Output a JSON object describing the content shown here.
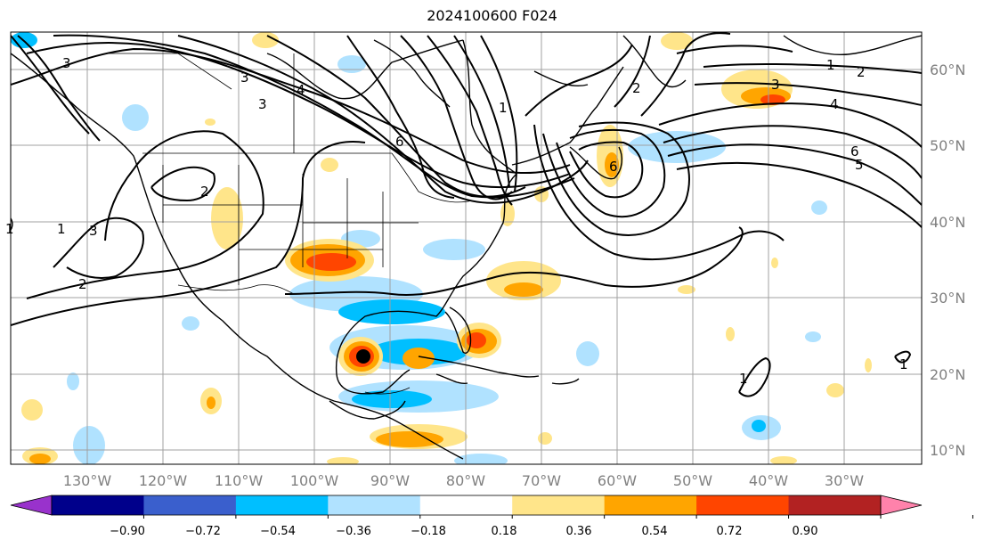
{
  "title": "2024100600 F024",
  "longitude_labels": [
    "130°W",
    "120°W",
    "110°W",
    "100°W",
    "90°W",
    "80°W",
    "70°W",
    "60°W",
    "50°W",
    "40°W",
    "30°W"
  ],
  "latitude_labels": [
    "60°N",
    "50°N",
    "40°N",
    "30°N",
    "20°N",
    "10°N"
  ],
  "colorbar": {
    "labels": [
      "−0.90",
      "−0.72",
      "−0.54",
      "−0.36",
      "−0.18",
      "0.18",
      "0.36",
      "0.54",
      "0.72",
      "0.90"
    ],
    "colors": [
      "#9932cc",
      "#00008b",
      "#3a5fcd",
      "#00bfff",
      "#b0e2ff",
      "#ffffff",
      "#ffe58a",
      "#ffa500",
      "#ff4500",
      "#b22222",
      "#ff82ab"
    ]
  },
  "contour_labels": [
    "1",
    "2",
    "3",
    "4",
    "5",
    "6",
    "1",
    "2",
    "3",
    "4",
    "6",
    "1",
    "3",
    "2",
    "1",
    "2",
    "3",
    "1",
    "3",
    "6",
    "1"
  ],
  "map": {
    "land_color": "#ffffff",
    "coastline_color": "#000000",
    "grid_color": "#a0a0a0",
    "storm_marker_color": "#000000"
  }
}
